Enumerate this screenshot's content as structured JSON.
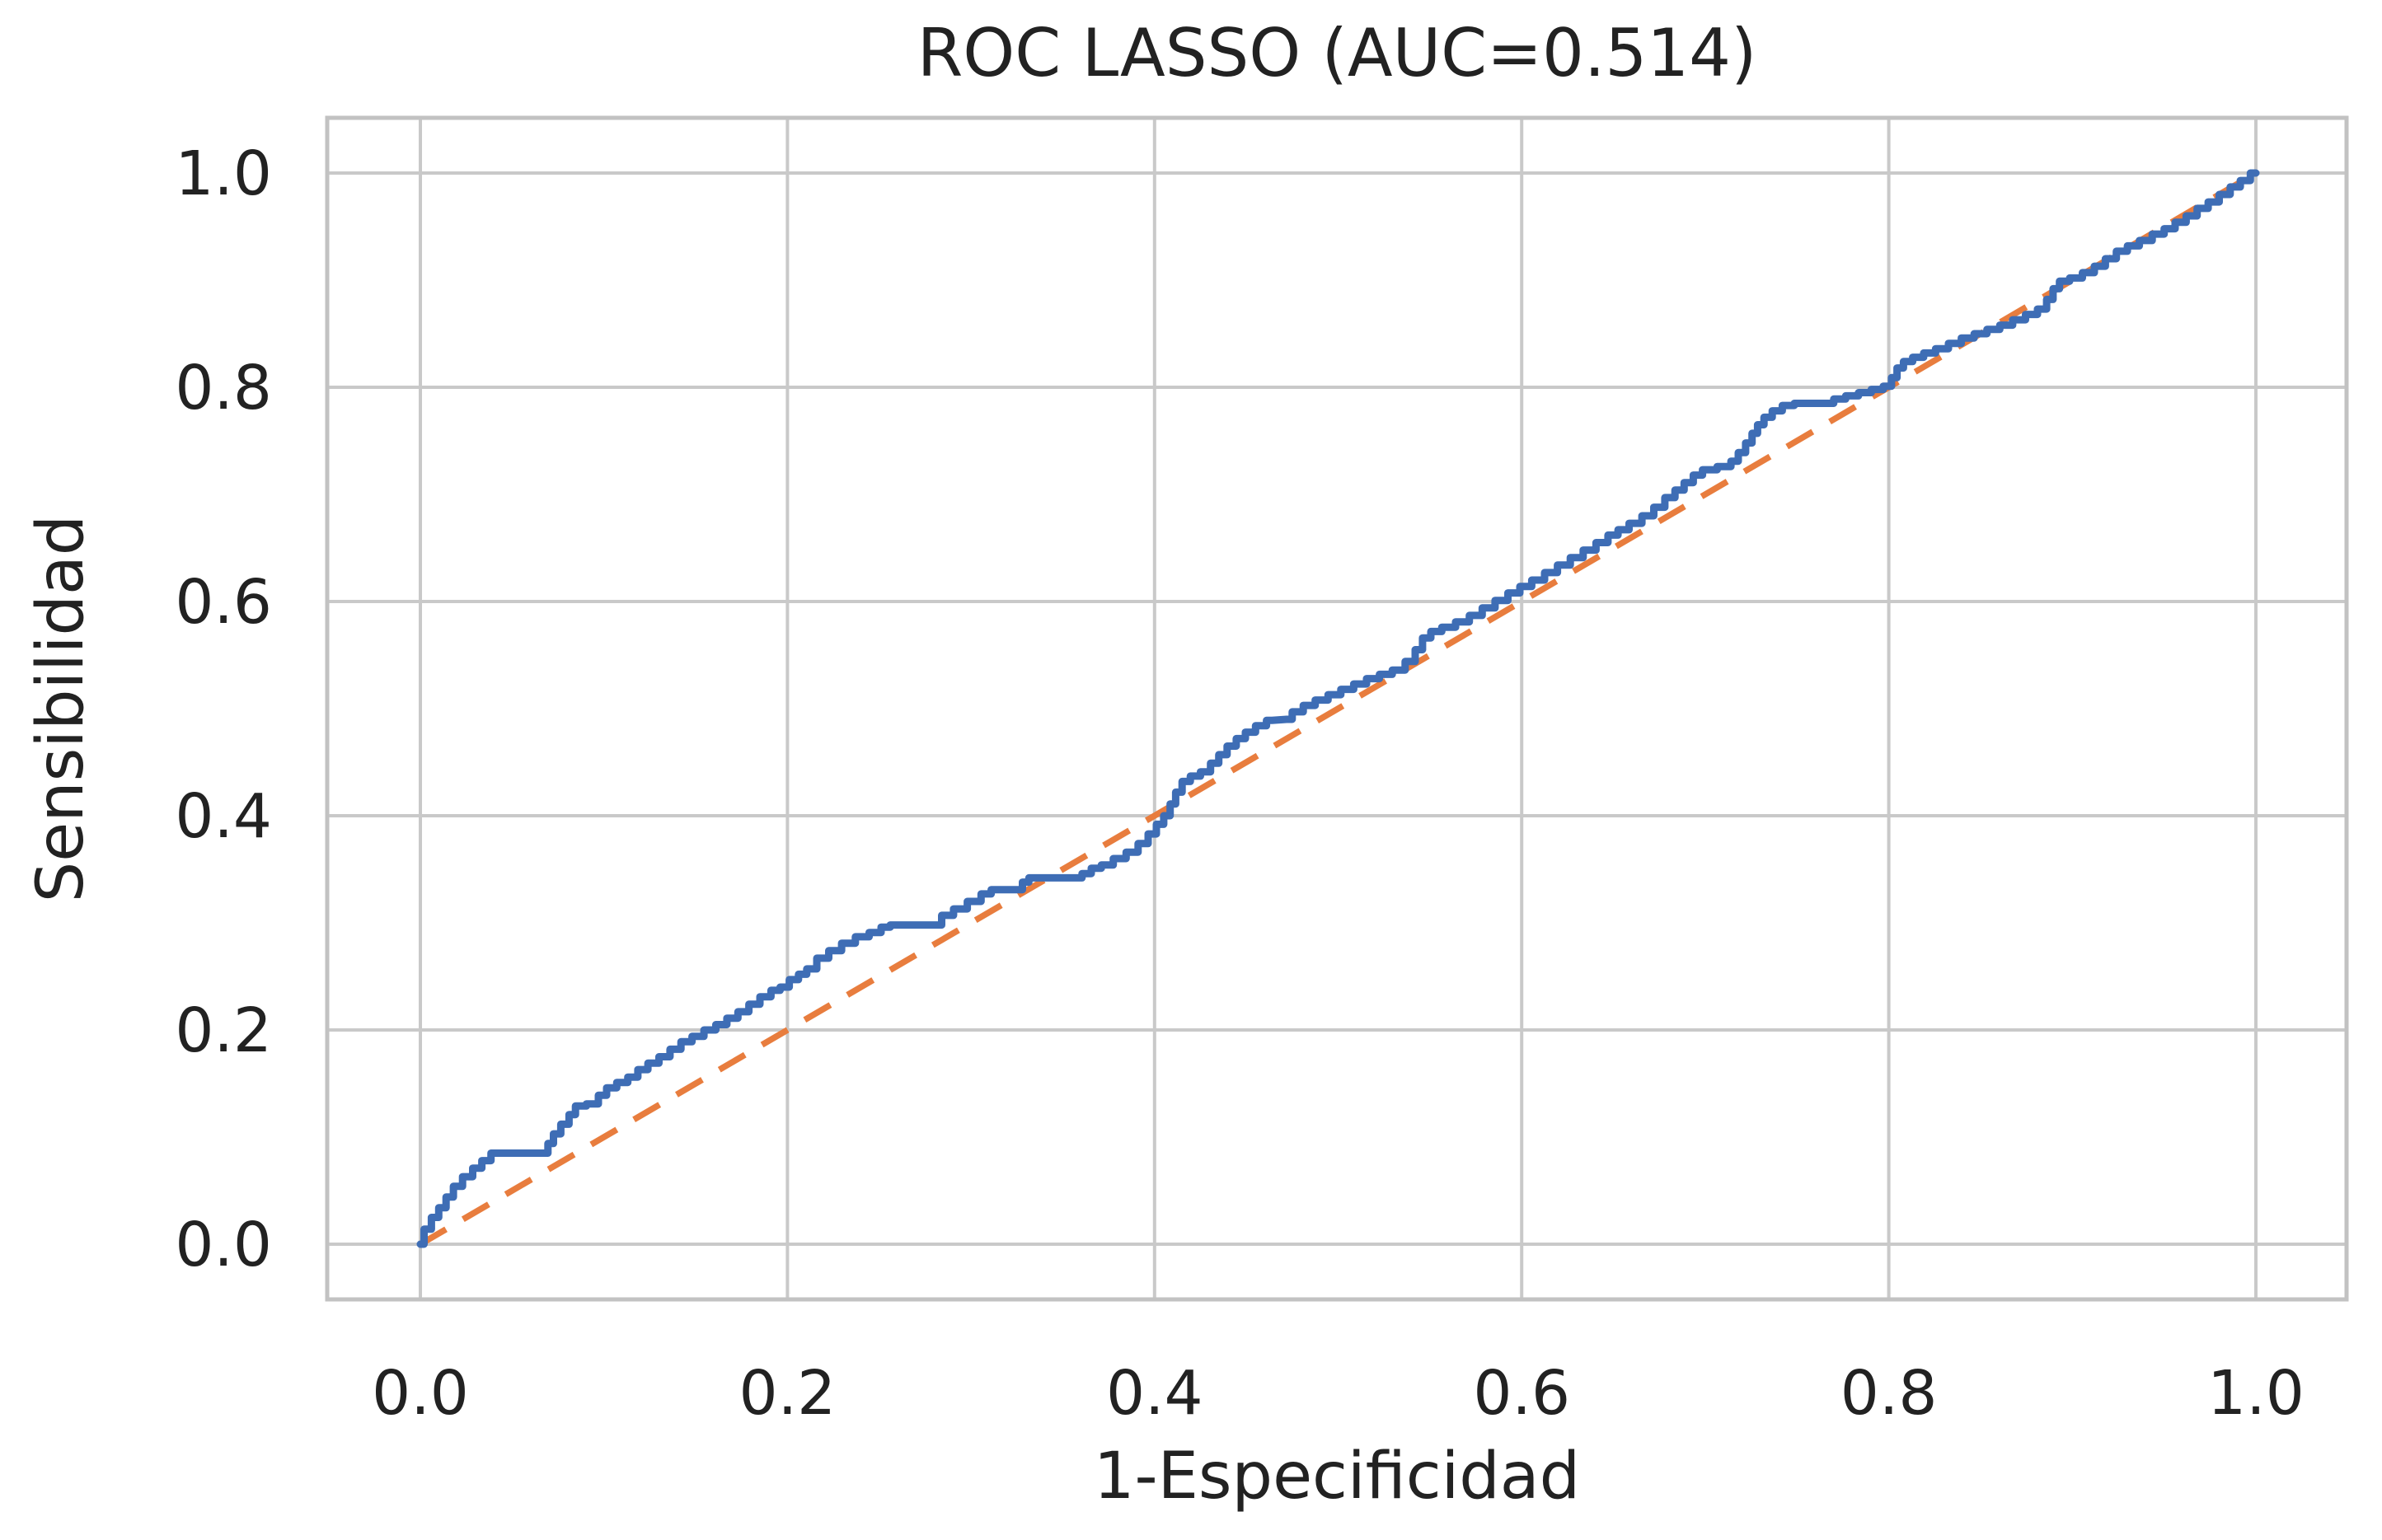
{
  "page": {
    "background": "#ffffff"
  },
  "chart_data": {
    "type": "line",
    "title": "ROC LASSO (AUC=0.514)",
    "xlabel": "1-Especificidad",
    "ylabel": "Sensibilidad",
    "auc": 0.514,
    "xlim": [
      -0.05,
      1.05
    ],
    "ylim": [
      -0.05,
      1.05
    ],
    "xticks": [
      0.0,
      0.2,
      0.4,
      0.6,
      0.8,
      1.0
    ],
    "yticks": [
      0.0,
      0.2,
      0.4,
      0.6,
      0.8,
      1.0
    ],
    "grid": true,
    "legend": "none",
    "colors": {
      "roc_line": "#3E6DB5",
      "diagonal": "#E87D3E",
      "gridline": "#C9C9C9",
      "spine": "#C2C2C2",
      "text": "#222222",
      "background": "#ffffff"
    },
    "series": [
      {
        "name": "ROC LASSO",
        "style": "step-line",
        "color": "#3E6DB5",
        "stroke_width": 9,
        "points": [
          [
            0.0,
            0.0
          ],
          [
            0.004,
            0.014
          ],
          [
            0.008,
            0.025
          ],
          [
            0.012,
            0.034
          ],
          [
            0.016,
            0.044
          ],
          [
            0.02,
            0.054
          ],
          [
            0.026,
            0.063
          ],
          [
            0.031,
            0.071
          ],
          [
            0.036,
            0.078
          ],
          [
            0.041,
            0.085
          ],
          [
            0.068,
            0.085
          ],
          [
            0.071,
            0.094
          ],
          [
            0.074,
            0.103
          ],
          [
            0.079,
            0.112
          ],
          [
            0.083,
            0.121
          ],
          [
            0.086,
            0.129
          ],
          [
            0.095,
            0.131
          ],
          [
            0.099,
            0.139
          ],
          [
            0.104,
            0.146
          ],
          [
            0.11,
            0.151
          ],
          [
            0.116,
            0.156
          ],
          [
            0.121,
            0.163
          ],
          [
            0.127,
            0.169
          ],
          [
            0.133,
            0.175
          ],
          [
            0.139,
            0.182
          ],
          [
            0.145,
            0.189
          ],
          [
            0.151,
            0.194
          ],
          [
            0.158,
            0.2
          ],
          [
            0.164,
            0.205
          ],
          [
            0.17,
            0.211
          ],
          [
            0.176,
            0.217
          ],
          [
            0.182,
            0.224
          ],
          [
            0.188,
            0.231
          ],
          [
            0.194,
            0.237
          ],
          [
            0.198,
            0.24
          ],
          [
            0.204,
            0.247
          ],
          [
            0.208,
            0.252
          ],
          [
            0.213,
            0.257
          ],
          [
            0.219,
            0.267
          ],
          [
            0.226,
            0.274
          ],
          [
            0.233,
            0.281
          ],
          [
            0.241,
            0.287
          ],
          [
            0.248,
            0.291
          ],
          [
            0.254,
            0.296
          ],
          [
            0.258,
            0.298
          ],
          [
            0.281,
            0.298
          ],
          [
            0.287,
            0.307
          ],
          [
            0.294,
            0.313
          ],
          [
            0.302,
            0.32
          ],
          [
            0.309,
            0.327
          ],
          [
            0.313,
            0.331
          ],
          [
            0.326,
            0.331
          ],
          [
            0.33,
            0.338
          ],
          [
            0.333,
            0.342
          ],
          [
            0.358,
            0.342
          ],
          [
            0.363,
            0.346
          ],
          [
            0.368,
            0.351
          ],
          [
            0.374,
            0.354
          ],
          [
            0.381,
            0.36
          ],
          [
            0.388,
            0.366
          ],
          [
            0.394,
            0.374
          ],
          [
            0.399,
            0.383
          ],
          [
            0.403,
            0.392
          ],
          [
            0.407,
            0.4
          ],
          [
            0.41,
            0.411
          ],
          [
            0.413,
            0.422
          ],
          [
            0.417,
            0.432
          ],
          [
            0.422,
            0.437
          ],
          [
            0.428,
            0.441
          ],
          [
            0.433,
            0.449
          ],
          [
            0.437,
            0.457
          ],
          [
            0.442,
            0.465
          ],
          [
            0.447,
            0.472
          ],
          [
            0.452,
            0.478
          ],
          [
            0.458,
            0.484
          ],
          [
            0.464,
            0.489
          ],
          [
            0.472,
            0.49
          ],
          [
            0.478,
            0.497
          ],
          [
            0.484,
            0.503
          ],
          [
            0.491,
            0.508
          ],
          [
            0.498,
            0.513
          ],
          [
            0.505,
            0.518
          ],
          [
            0.512,
            0.523
          ],
          [
            0.519,
            0.528
          ],
          [
            0.526,
            0.532
          ],
          [
            0.533,
            0.536
          ],
          [
            0.54,
            0.544
          ],
          [
            0.544,
            0.555
          ],
          [
            0.548,
            0.566
          ],
          [
            0.553,
            0.572
          ],
          [
            0.56,
            0.576
          ],
          [
            0.568,
            0.581
          ],
          [
            0.575,
            0.587
          ],
          [
            0.582,
            0.594
          ],
          [
            0.589,
            0.601
          ],
          [
            0.596,
            0.608
          ],
          [
            0.602,
            0.614
          ],
          [
            0.609,
            0.62
          ],
          [
            0.616,
            0.627
          ],
          [
            0.623,
            0.634
          ],
          [
            0.63,
            0.641
          ],
          [
            0.637,
            0.648
          ],
          [
            0.644,
            0.655
          ],
          [
            0.65,
            0.662
          ],
          [
            0.655,
            0.667
          ],
          [
            0.662,
            0.673
          ],
          [
            0.669,
            0.68
          ],
          [
            0.675,
            0.688
          ],
          [
            0.681,
            0.697
          ],
          [
            0.686,
            0.704
          ],
          [
            0.691,
            0.711
          ],
          [
            0.696,
            0.718
          ],
          [
            0.701,
            0.723
          ],
          [
            0.712,
            0.726
          ],
          [
            0.716,
            0.731
          ],
          [
            0.72,
            0.739
          ],
          [
            0.724,
            0.748
          ],
          [
            0.727,
            0.757
          ],
          [
            0.73,
            0.765
          ],
          [
            0.734,
            0.772
          ],
          [
            0.739,
            0.778
          ],
          [
            0.745,
            0.783
          ],
          [
            0.752,
            0.785
          ],
          [
            0.767,
            0.785
          ],
          [
            0.773,
            0.789
          ],
          [
            0.78,
            0.792
          ],
          [
            0.787,
            0.795
          ],
          [
            0.794,
            0.798
          ],
          [
            0.8,
            0.801
          ],
          [
            0.803,
            0.809
          ],
          [
            0.806,
            0.818
          ],
          [
            0.81,
            0.824
          ],
          [
            0.816,
            0.828
          ],
          [
            0.822,
            0.832
          ],
          [
            0.829,
            0.836
          ],
          [
            0.836,
            0.841
          ],
          [
            0.843,
            0.846
          ],
          [
            0.85,
            0.85
          ],
          [
            0.857,
            0.854
          ],
          [
            0.864,
            0.858
          ],
          [
            0.871,
            0.863
          ],
          [
            0.878,
            0.868
          ],
          [
            0.884,
            0.873
          ],
          [
            0.888,
            0.882
          ],
          [
            0.891,
            0.892
          ],
          [
            0.895,
            0.899
          ],
          [
            0.902,
            0.902
          ],
          [
            0.909,
            0.907
          ],
          [
            0.915,
            0.913
          ],
          [
            0.921,
            0.92
          ],
          [
            0.927,
            0.927
          ],
          [
            0.933,
            0.932
          ],
          [
            0.94,
            0.937
          ],
          [
            0.947,
            0.943
          ],
          [
            0.953,
            0.948
          ],
          [
            0.959,
            0.954
          ],
          [
            0.965,
            0.96
          ],
          [
            0.971,
            0.967
          ],
          [
            0.977,
            0.973
          ],
          [
            0.983,
            0.98
          ],
          [
            0.989,
            0.987
          ],
          [
            0.994,
            0.993
          ],
          [
            1.0,
            1.0
          ]
        ]
      },
      {
        "name": "chance-diagonal",
        "style": "dashed-line",
        "color": "#E87D3E",
        "stroke_width": 7.5,
        "dash": [
          36,
          24
        ],
        "points": [
          [
            0.0,
            0.0
          ],
          [
            1.0,
            1.0
          ]
        ]
      }
    ]
  }
}
